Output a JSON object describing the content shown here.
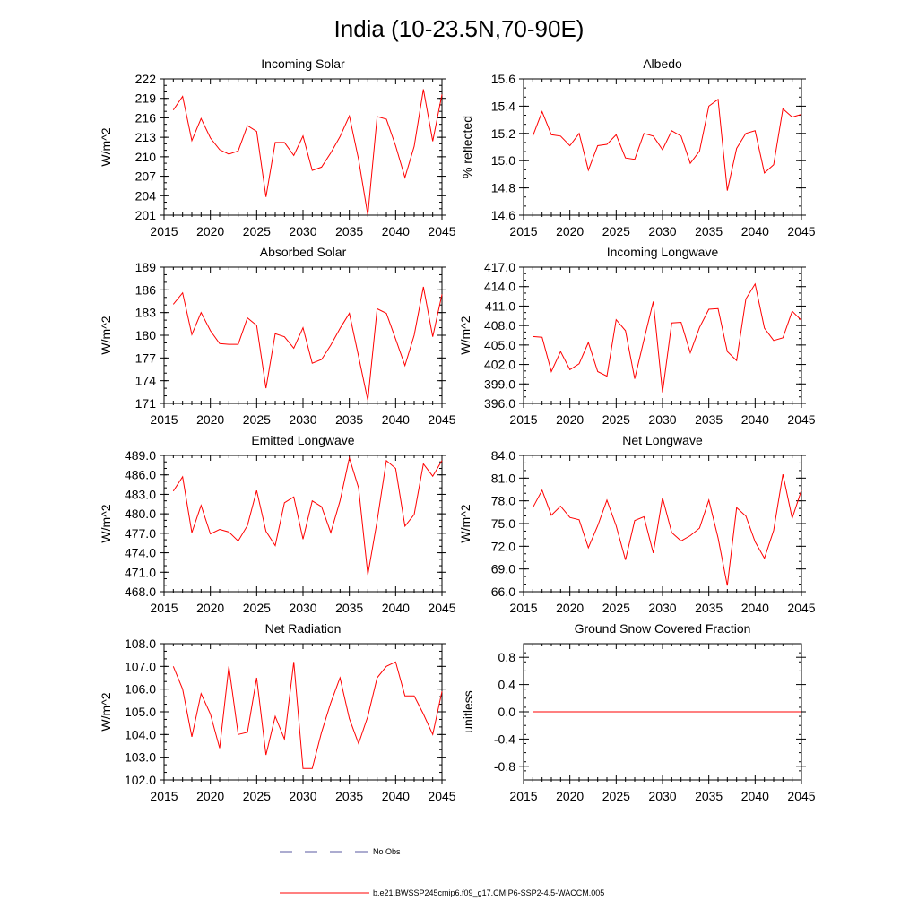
{
  "page_title": "India (10-23.5N,70-90E)",
  "colors": {
    "series": "#ff0000",
    "obs": "#5a5aa0",
    "axis": "#000000"
  },
  "legend": {
    "obs_label": "No Obs",
    "model_label": "b.e21.BWSSP245cmip6.f09_g17.CMIP6-SSP2-4.5-WACCM.005"
  },
  "chart_data": [
    {
      "type": "line",
      "title": "Incoming Solar",
      "ylabel": "W/m^2",
      "xlim": [
        2015,
        2045
      ],
      "ylim": [
        201,
        222
      ],
      "xticks": [
        2015,
        2020,
        2025,
        2030,
        2035,
        2040,
        2045
      ],
      "yticks": [
        201,
        204,
        207,
        210,
        213,
        216,
        219,
        222
      ],
      "ytick_labels": [
        "201",
        "204",
        "207",
        "210",
        "213",
        "216",
        "219",
        "222"
      ],
      "x": [
        2016,
        2017,
        2018,
        2019,
        2020,
        2021,
        2022,
        2023,
        2024,
        2025,
        2026,
        2027,
        2028,
        2029,
        2030,
        2031,
        2032,
        2033,
        2034,
        2035,
        2036,
        2037,
        2038,
        2039,
        2040,
        2041,
        2042,
        2043,
        2044,
        2045
      ],
      "y": [
        217.2,
        219.3,
        212.5,
        215.9,
        212.9,
        211.1,
        210.4,
        210.9,
        214.8,
        213.9,
        203.8,
        212.2,
        212.2,
        210.2,
        213.2,
        207.9,
        208.4,
        210.6,
        213.1,
        216.3,
        209.6,
        201.0,
        216.2,
        215.8,
        211.7,
        206.8,
        211.6,
        220.4,
        212.4,
        219.6
      ]
    },
    {
      "type": "line",
      "title": "Albedo",
      "ylabel": "% reflected",
      "xlim": [
        2015,
        2045
      ],
      "ylim": [
        14.6,
        15.6
      ],
      "xticks": [
        2015,
        2020,
        2025,
        2030,
        2035,
        2040,
        2045
      ],
      "yticks": [
        14.6,
        14.8,
        15.0,
        15.2,
        15.4,
        15.6
      ],
      "ytick_labels": [
        "14.6",
        "14.8",
        "15.0",
        "15.2",
        "15.4",
        "15.6"
      ],
      "x": [
        2016,
        2017,
        2018,
        2019,
        2020,
        2021,
        2022,
        2023,
        2024,
        2025,
        2026,
        2027,
        2028,
        2029,
        2030,
        2031,
        2032,
        2033,
        2034,
        2035,
        2036,
        2037,
        2038,
        2039,
        2040,
        2041,
        2042,
        2043,
        2044,
        2045
      ],
      "y": [
        15.18,
        15.36,
        15.19,
        15.18,
        15.11,
        15.2,
        14.93,
        15.11,
        15.12,
        15.19,
        15.02,
        15.01,
        15.2,
        15.18,
        15.08,
        15.22,
        15.18,
        14.98,
        15.07,
        15.4,
        15.45,
        14.78,
        15.09,
        15.2,
        15.22,
        14.91,
        14.97,
        15.38,
        15.32,
        15.34
      ]
    },
    {
      "type": "line",
      "title": "Absorbed Solar",
      "ylabel": "W/m^2",
      "xlim": [
        2015,
        2045
      ],
      "ylim": [
        171,
        189
      ],
      "xticks": [
        2015,
        2020,
        2025,
        2030,
        2035,
        2040,
        2045
      ],
      "yticks": [
        171,
        174,
        177,
        180,
        183,
        186,
        189
      ],
      "ytick_labels": [
        "171",
        "174",
        "177",
        "180",
        "183",
        "186",
        "189"
      ],
      "x": [
        2016,
        2017,
        2018,
        2019,
        2020,
        2021,
        2022,
        2023,
        2024,
        2025,
        2026,
        2027,
        2028,
        2029,
        2030,
        2031,
        2032,
        2033,
        2034,
        2035,
        2036,
        2037,
        2038,
        2039,
        2040,
        2041,
        2042,
        2043,
        2044,
        2045
      ],
      "y": [
        184.1,
        185.6,
        180.1,
        183.0,
        180.6,
        178.9,
        178.8,
        178.8,
        182.3,
        181.3,
        173.0,
        180.2,
        179.8,
        178.3,
        181.0,
        176.3,
        176.8,
        178.7,
        180.9,
        182.9,
        177.2,
        171.4,
        183.5,
        182.9,
        179.5,
        176.0,
        180.0,
        186.4,
        179.8,
        185.4
      ]
    },
    {
      "type": "line",
      "title": "Incoming Longwave",
      "ylabel": "W/m^2",
      "xlim": [
        2015,
        2045
      ],
      "ylim": [
        396.0,
        417.0
      ],
      "xticks": [
        2015,
        2020,
        2025,
        2030,
        2035,
        2040,
        2045
      ],
      "yticks": [
        396,
        399,
        402,
        405,
        408,
        411,
        414,
        417
      ],
      "ytick_labels": [
        "396.0",
        "399.0",
        "402.0",
        "405.0",
        "408.0",
        "411.0",
        "414.0",
        "417.0"
      ],
      "x": [
        2016,
        2017,
        2018,
        2019,
        2020,
        2021,
        2022,
        2023,
        2024,
        2025,
        2026,
        2027,
        2028,
        2029,
        2030,
        2031,
        2032,
        2033,
        2034,
        2035,
        2036,
        2037,
        2038,
        2039,
        2040,
        2041,
        2042,
        2043,
        2044,
        2045
      ],
      "y": [
        406.3,
        406.2,
        400.9,
        404.0,
        401.2,
        402.1,
        405.4,
        400.9,
        400.2,
        408.9,
        407.2,
        399.8,
        405.8,
        411.7,
        397.7,
        408.4,
        408.5,
        403.8,
        407.7,
        410.5,
        410.6,
        404.0,
        402.6,
        412.1,
        414.4,
        407.6,
        405.7,
        406.1,
        410.2,
        408.8
      ]
    },
    {
      "type": "line",
      "title": "Emitted Longwave",
      "ylabel": "W/m^2",
      "xlim": [
        2015,
        2045
      ],
      "ylim": [
        468.0,
        489.0
      ],
      "xticks": [
        2015,
        2020,
        2025,
        2030,
        2035,
        2040,
        2045
      ],
      "yticks": [
        468,
        471,
        474,
        477,
        480,
        483,
        486,
        489
      ],
      "ytick_labels": [
        "468.0",
        "471.0",
        "474.0",
        "477.0",
        "480.0",
        "483.0",
        "486.0",
        "489.0"
      ],
      "x": [
        2016,
        2017,
        2018,
        2019,
        2020,
        2021,
        2022,
        2023,
        2024,
        2025,
        2026,
        2027,
        2028,
        2029,
        2030,
        2031,
        2032,
        2033,
        2034,
        2035,
        2036,
        2037,
        2038,
        2039,
        2040,
        2041,
        2042,
        2043,
        2044,
        2045
      ],
      "y": [
        483.5,
        485.7,
        477.1,
        481.3,
        476.9,
        477.6,
        477.2,
        475.8,
        478.2,
        483.6,
        477.3,
        475.1,
        481.7,
        482.6,
        476.1,
        482.0,
        481.1,
        477.1,
        482.0,
        488.6,
        484.0,
        470.6,
        478.9,
        488.2,
        487.0,
        478.1,
        479.9,
        487.7,
        485.8,
        488.2
      ]
    },
    {
      "type": "line",
      "title": "Net Longwave",
      "ylabel": "W/m^2",
      "xlim": [
        2015,
        2045
      ],
      "ylim": [
        66.0,
        84.0
      ],
      "xticks": [
        2015,
        2020,
        2025,
        2030,
        2035,
        2040,
        2045
      ],
      "yticks": [
        66,
        69,
        72,
        75,
        78,
        81,
        84
      ],
      "ytick_labels": [
        "66.0",
        "69.0",
        "72.0",
        "75.0",
        "78.0",
        "81.0",
        "84.0"
      ],
      "x": [
        2016,
        2017,
        2018,
        2019,
        2020,
        2021,
        2022,
        2023,
        2024,
        2025,
        2026,
        2027,
        2028,
        2029,
        2030,
        2031,
        2032,
        2033,
        2034,
        2035,
        2036,
        2037,
        2038,
        2039,
        2040,
        2041,
        2042,
        2043,
        2044,
        2045
      ],
      "y": [
        77.1,
        79.4,
        76.1,
        77.3,
        75.8,
        75.5,
        71.8,
        74.7,
        78.1,
        74.7,
        70.2,
        75.4,
        75.9,
        71.1,
        78.4,
        73.8,
        72.7,
        73.4,
        74.4,
        78.1,
        73.1,
        66.8,
        77.1,
        76.0,
        72.6,
        70.4,
        74.1,
        81.5,
        75.7,
        79.4
      ]
    },
    {
      "type": "line",
      "title": "Net Radiation",
      "ylabel": "W/m^2",
      "xlim": [
        2015,
        2045
      ],
      "ylim": [
        102.0,
        108.0
      ],
      "xticks": [
        2015,
        2020,
        2025,
        2030,
        2035,
        2040,
        2045
      ],
      "yticks": [
        102,
        103,
        104,
        105,
        106,
        107,
        108
      ],
      "ytick_labels": [
        "102.0",
        "103.0",
        "104.0",
        "105.0",
        "106.0",
        "107.0",
        "108.0"
      ],
      "x": [
        2016,
        2017,
        2018,
        2019,
        2020,
        2021,
        2022,
        2023,
        2024,
        2025,
        2026,
        2027,
        2028,
        2029,
        2030,
        2031,
        2032,
        2033,
        2034,
        2035,
        2036,
        2037,
        2038,
        2039,
        2040,
        2041,
        2042,
        2043,
        2044,
        2045
      ],
      "y": [
        107.0,
        106.0,
        103.9,
        105.8,
        104.9,
        103.4,
        107.0,
        104.0,
        104.1,
        106.5,
        103.1,
        104.8,
        103.8,
        107.2,
        102.5,
        102.5,
        104.1,
        105.4,
        106.5,
        104.7,
        103.6,
        104.8,
        106.5,
        107.0,
        107.2,
        105.7,
        105.7,
        104.9,
        104.0,
        105.9
      ]
    },
    {
      "type": "line",
      "title": "Ground Snow Covered Fraction",
      "ylabel": "unitless",
      "xlim": [
        2015,
        2045
      ],
      "ylim": [
        -1.0,
        1.0
      ],
      "xticks": [
        2015,
        2020,
        2025,
        2030,
        2035,
        2040,
        2045
      ],
      "yticks": [
        -0.8,
        -0.4,
        0.0,
        0.4,
        0.8
      ],
      "ytick_labels": [
        "-0.8",
        "-0.4",
        "0.0",
        "0.4",
        "0.8"
      ],
      "x": [
        2016,
        2045
      ],
      "y": [
        0.0,
        0.0
      ]
    }
  ]
}
